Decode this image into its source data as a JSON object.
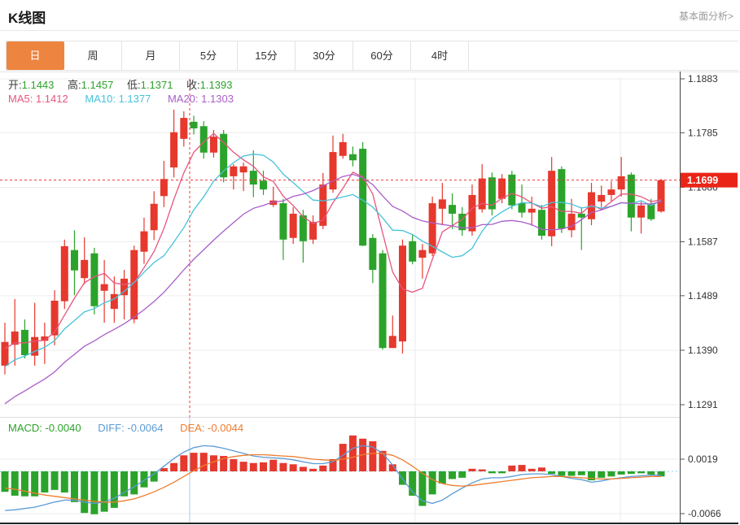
{
  "header": {
    "title": "K线图",
    "link_label": "基本面分析>"
  },
  "tabs": [
    {
      "label": "日",
      "active": true
    },
    {
      "label": "周",
      "active": false
    },
    {
      "label": "月",
      "active": false
    },
    {
      "label": "5分",
      "active": false
    },
    {
      "label": "15分",
      "active": false
    },
    {
      "label": "30分",
      "active": false
    },
    {
      "label": "60分",
      "active": false
    },
    {
      "label": "4时",
      "active": false
    }
  ],
  "info_bar": {
    "open_label": "开:",
    "open_value": "1.1443",
    "high_label": "高:",
    "high_value": "1.1457",
    "low_label": "低:",
    "low_value": "1.1371",
    "close_label": "收:",
    "close_value": "1.1393"
  },
  "ma_legend": {
    "ma5_label": "MA5:",
    "ma5_value": "1.1412",
    "ma10_label": "MA10:",
    "ma10_value": "1.1377",
    "ma20_label": "MA20:",
    "ma20_value": "1.1303"
  },
  "macd_legend": {
    "macd_label": "MACD:",
    "macd_value": "-0.0040",
    "diff_label": "DIFF:",
    "diff_value": "-0.0064",
    "dea_label": "DEA:",
    "dea_value": "-0.0044"
  },
  "price_axis": {
    "ticks": [
      "1.1883",
      "1.1785",
      "1.1686",
      "1.1587",
      "1.1489",
      "1.1390",
      "1.1291"
    ],
    "current_price": "1.1699"
  },
  "macd_axis": {
    "ticks": [
      "0.0019",
      "-0.0066"
    ]
  },
  "colors": {
    "up": "#e6382d",
    "down": "#2ba32b",
    "ma5": "#e8547d",
    "ma10": "#45c3da",
    "ma20": "#a95ec9",
    "diff": "#5b9bd5",
    "dea": "#ed7d31",
    "tab_accent": "#ed8540",
    "price_tag": "#ea2518",
    "current_line": "#f03333",
    "grid": "#ededed",
    "axis_line": "#444",
    "crosshair_macd": "#a8cfe8"
  },
  "chart_data": {
    "type": "candlestick",
    "title": "K线图",
    "panels": [
      "price",
      "macd"
    ],
    "grid": true,
    "price_range": [
      1.1291,
      1.1883
    ],
    "price_gridlines": [
      1.1883,
      1.1785,
      1.1686,
      1.1587,
      1.1489,
      1.139,
      1.1291
    ],
    "current_price": 1.1699,
    "ma_windows": [
      5,
      10,
      20
    ],
    "candles_format": [
      "open",
      "high",
      "low",
      "close"
    ],
    "candles": [
      [
        1.1362,
        1.144,
        1.1346,
        1.1405
      ],
      [
        1.14,
        1.1483,
        1.1362,
        1.1424
      ],
      [
        1.1427,
        1.1446,
        1.1375,
        1.1381
      ],
      [
        1.138,
        1.1476,
        1.1362,
        1.1414
      ],
      [
        1.1407,
        1.144,
        1.1365,
        1.1415
      ],
      [
        1.1417,
        1.1499,
        1.1399,
        1.148
      ],
      [
        1.1479,
        1.1591,
        1.1465,
        1.1579
      ],
      [
        1.1572,
        1.1608,
        1.149,
        1.1535
      ],
      [
        1.1521,
        1.1595,
        1.151,
        1.1554
      ],
      [
        1.1566,
        1.1576,
        1.1455,
        1.147
      ],
      [
        1.1498,
        1.1554,
        1.144,
        1.151
      ],
      [
        1.1465,
        1.1524,
        1.144,
        1.1492
      ],
      [
        1.149,
        1.1536,
        1.1446,
        1.152
      ],
      [
        1.1446,
        1.158,
        1.1439,
        1.1572
      ],
      [
        1.1569,
        1.1631,
        1.1547,
        1.1606
      ],
      [
        1.1608,
        1.1679,
        1.159,
        1.1656
      ],
      [
        1.167,
        1.1734,
        1.165,
        1.1701
      ],
      [
        1.1722,
        1.1827,
        1.1704,
        1.1786
      ],
      [
        1.1774,
        1.1824,
        1.176,
        1.1812
      ],
      [
        1.1805,
        1.1816,
        1.1782,
        1.1793
      ],
      [
        1.1797,
        1.1806,
        1.1738,
        1.1749
      ],
      [
        1.1749,
        1.179,
        1.174,
        1.1778
      ],
      [
        1.1783,
        1.179,
        1.1695,
        1.1704
      ],
      [
        1.1706,
        1.1728,
        1.1682,
        1.1724
      ],
      [
        1.1713,
        1.1731,
        1.1679,
        1.1724
      ],
      [
        1.1716,
        1.1753,
        1.1668,
        1.1691
      ],
      [
        1.1698,
        1.1716,
        1.1672,
        1.1682
      ],
      [
        1.1654,
        1.1687,
        1.165,
        1.1662
      ],
      [
        1.1657,
        1.1665,
        1.1554,
        1.1591
      ],
      [
        1.1594,
        1.165,
        1.1583,
        1.1638
      ],
      [
        1.1635,
        1.1645,
        1.1549,
        1.1588
      ],
      [
        1.1591,
        1.1635,
        1.1583,
        1.1623
      ],
      [
        1.1616,
        1.1712,
        1.161,
        1.1691
      ],
      [
        1.1682,
        1.178,
        1.1676,
        1.175
      ],
      [
        1.1743,
        1.1783,
        1.1738,
        1.1768
      ],
      [
        1.1746,
        1.176,
        1.1724,
        1.1735
      ],
      [
        1.1756,
        1.1768,
        1.1579,
        1.158
      ],
      [
        1.1594,
        1.1601,
        1.1512,
        1.1536
      ],
      [
        1.1566,
        1.1572,
        1.1391,
        1.1394
      ],
      [
        1.1394,
        1.1453,
        1.1394,
        1.1416
      ],
      [
        1.1406,
        1.1591,
        1.1384,
        1.158
      ],
      [
        1.1588,
        1.1601,
        1.1546,
        1.1551
      ],
      [
        1.1558,
        1.1583,
        1.152,
        1.1572
      ],
      [
        1.1566,
        1.1669,
        1.1561,
        1.1657
      ],
      [
        1.1647,
        1.1694,
        1.1617,
        1.1664
      ],
      [
        1.1654,
        1.1675,
        1.161,
        1.1638
      ],
      [
        1.1638,
        1.165,
        1.1598,
        1.1608
      ],
      [
        1.1606,
        1.1691,
        1.1598,
        1.1672
      ],
      [
        1.1646,
        1.1728,
        1.164,
        1.1702
      ],
      [
        1.1704,
        1.1713,
        1.1635,
        1.1646
      ],
      [
        1.1665,
        1.171,
        1.1657,
        1.1702
      ],
      [
        1.1709,
        1.1716,
        1.1646,
        1.1653
      ],
      [
        1.1657,
        1.1691,
        1.1631,
        1.164
      ],
      [
        1.164,
        1.1669,
        1.1616,
        1.1647
      ],
      [
        1.1645,
        1.1654,
        1.1591,
        1.1598
      ],
      [
        1.1597,
        1.1741,
        1.1579,
        1.1716
      ],
      [
        1.1719,
        1.1724,
        1.1603,
        1.1611
      ],
      [
        1.1608,
        1.1665,
        1.1595,
        1.1638
      ],
      [
        1.1638,
        1.165,
        1.1572,
        1.1631
      ],
      [
        1.1628,
        1.1694,
        1.1617,
        1.1677
      ],
      [
        1.166,
        1.1689,
        1.165,
        1.1672
      ],
      [
        1.1672,
        1.1697,
        1.166,
        1.1682
      ],
      [
        1.1682,
        1.1741,
        1.1669,
        1.1706
      ],
      [
        1.1709,
        1.1713,
        1.1606,
        1.1631
      ],
      [
        1.1631,
        1.166,
        1.1602,
        1.1653
      ],
      [
        1.1655,
        1.1665,
        1.1625,
        1.1628
      ],
      [
        1.1642,
        1.1701,
        1.164,
        1.1699
      ]
    ],
    "macd": {
      "range": [
        -0.0066,
        0.0019
      ],
      "gridlines": [
        0.0019,
        -0.0066
      ],
      "hist": [
        -0.0032,
        -0.0038,
        -0.0039,
        -0.0039,
        -0.0033,
        -0.0029,
        -0.0033,
        -0.0048,
        -0.0065,
        -0.0067,
        -0.0063,
        -0.0057,
        -0.0039,
        -0.0036,
        -0.0025,
        -0.0016,
        0.0005,
        0.0013,
        0.0025,
        0.0029,
        0.0029,
        0.0025,
        0.0024,
        0.0019,
        0.0015,
        0.0013,
        0.0014,
        0.0018,
        0.0013,
        0.0011,
        0.0007,
        0.0004,
        0.0009,
        0.0019,
        0.0043,
        0.0056,
        0.0051,
        0.0047,
        0.0032,
        0.0011,
        -0.0021,
        -0.0038,
        -0.0054,
        -0.0036,
        -0.0019,
        -0.0012,
        -0.001,
        0.0004,
        0.0003,
        -0.0003,
        -0.0003,
        0.0009,
        0.001,
        0.0004,
        0.0006,
        -0.0004,
        -0.0007,
        -0.0007,
        -0.0006,
        -0.0014,
        -0.001,
        -0.0008,
        -0.0005,
        -0.0004,
        -0.0003,
        -0.0005,
        -0.0008
      ],
      "diff": [
        -0.0061,
        -0.006,
        -0.0058,
        -0.0056,
        -0.0052,
        -0.0048,
        -0.0045,
        -0.0045,
        -0.0048,
        -0.005,
        -0.0048,
        -0.0042,
        -0.0033,
        -0.0024,
        -0.0014,
        -0.0004,
        0.0008,
        0.002,
        0.003,
        0.0037,
        0.004,
        0.0039,
        0.0036,
        0.0032,
        0.0028,
        0.0024,
        0.0022,
        0.0021,
        0.002,
        0.0018,
        0.0015,
        0.0012,
        0.0012,
        0.0015,
        0.0025,
        0.0036,
        0.004,
        0.0038,
        0.0028,
        0.001,
        -0.0012,
        -0.0032,
        -0.0046,
        -0.005,
        -0.0045,
        -0.0035,
        -0.0026,
        -0.0018,
        -0.0012,
        -0.001,
        -0.001,
        -0.0008,
        -0.0005,
        -0.0004,
        -0.0004,
        -0.0005,
        -0.0008,
        -0.0011,
        -0.0013,
        -0.0017,
        -0.0015,
        -0.0012,
        -0.001,
        -0.0008,
        -0.0007,
        -0.0006,
        -0.0006
      ],
      "dea": [
        -0.0026,
        -0.0028,
        -0.0031,
        -0.0034,
        -0.0037,
        -0.0039,
        -0.0041,
        -0.0043,
        -0.0045,
        -0.0047,
        -0.0048,
        -0.0048,
        -0.0046,
        -0.0043,
        -0.0038,
        -0.0032,
        -0.0025,
        -0.0017,
        -0.0008,
        0.0001,
        0.0009,
        0.0015,
        0.002,
        0.0023,
        0.0025,
        0.0026,
        0.0026,
        0.0025,
        0.0024,
        0.0023,
        0.0021,
        0.0019,
        0.0018,
        0.0017,
        0.0019,
        0.0022,
        0.0026,
        0.0028,
        0.0028,
        0.0025,
        0.0018,
        0.0008,
        -0.0003,
        -0.0013,
        -0.0019,
        -0.0022,
        -0.0023,
        -0.0022,
        -0.002,
        -0.0018,
        -0.0016,
        -0.0014,
        -0.0012,
        -0.001,
        -0.0009,
        -0.0008,
        -0.0008,
        -0.0009,
        -0.001,
        -0.0011,
        -0.0012,
        -0.0012,
        -0.0011,
        -0.001,
        -0.0009,
        -0.0008,
        -0.0008
      ]
    }
  }
}
